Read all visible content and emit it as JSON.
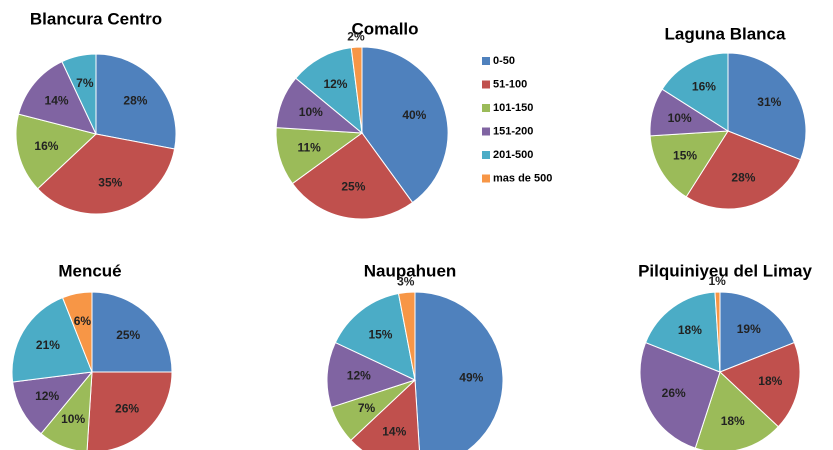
{
  "chart_data": [
    {
      "type": "pie",
      "title": "Blancura Centro",
      "values": [
        28,
        35,
        16,
        14,
        7
      ],
      "value_labels": [
        "28%",
        "35%",
        "16%",
        "14%",
        "7%"
      ]
    },
    {
      "type": "pie",
      "title": "Comallo",
      "categories": [
        "0-50",
        "51-100",
        "101-150",
        "151-200",
        "201-500",
        "mas de 500"
      ],
      "colors": [
        "#4f81bd",
        "#c0504d",
        "#9bbb59",
        "#8064a2",
        "#4bacc6",
        "#f79646"
      ],
      "values": [
        40,
        25,
        11,
        10,
        12,
        2
      ],
      "value_labels": [
        "40%",
        "25%",
        "11%",
        "10%",
        "12%",
        "2%"
      ]
    },
    {
      "type": "pie",
      "title": "Laguna Blanca",
      "values": [
        31,
        28,
        15,
        10,
        16
      ],
      "value_labels": [
        "31%",
        "28%",
        "15%",
        "10%",
        "16%"
      ]
    },
    {
      "type": "pie",
      "title": "Mencué",
      "values": [
        25,
        26,
        10,
        12,
        21,
        6
      ],
      "value_labels": [
        "25%",
        "26%",
        "10%",
        "12%",
        "21%",
        "6%"
      ]
    },
    {
      "type": "pie",
      "title": "Naupahuen",
      "values": [
        49,
        14,
        7,
        12,
        15,
        3
      ],
      "value_labels": [
        "49%",
        "14%",
        "7%",
        "12%",
        "15%",
        "3%"
      ]
    },
    {
      "type": "pie",
      "title": "Pilquiniyeu del Limay",
      "values": [
        19,
        18,
        18,
        26,
        18,
        1
      ],
      "value_labels": [
        "19%",
        "18%",
        "18%",
        "26%",
        "18%",
        "1%"
      ]
    }
  ]
}
